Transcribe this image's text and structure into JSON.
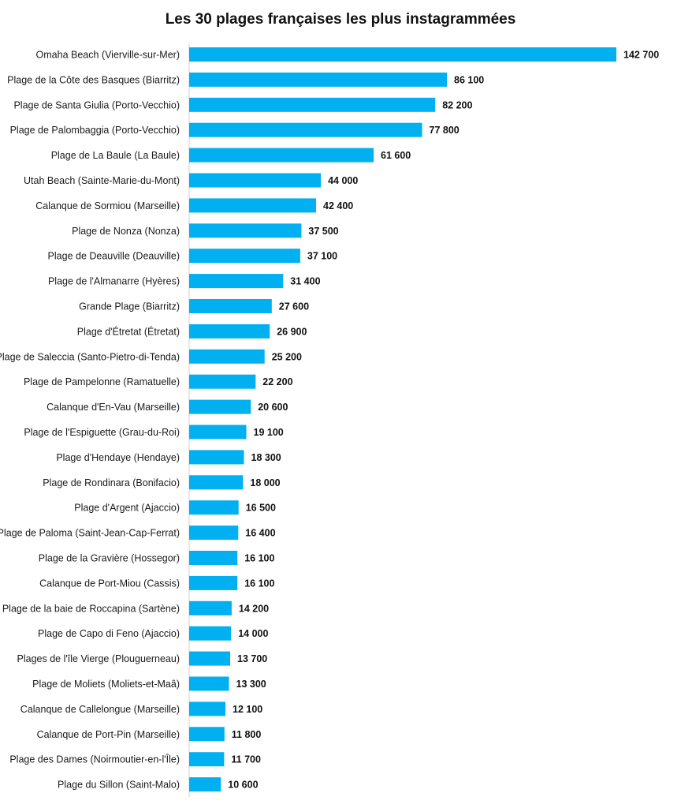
{
  "chart_data": {
    "type": "bar",
    "orientation": "horizontal",
    "title": "Les 30 plages françaises les plus instagrammées",
    "xlabel": "",
    "ylabel": "",
    "categories": [
      "Omaha Beach (Vierville-sur-Mer)",
      "Plage de la Côte des Basques (Biarritz)",
      "Plage de Santa Giulia (Porto-Vecchio)",
      "Plage de Palombaggia (Porto-Vecchio)",
      "Plage de La Baule (La Baule)",
      "Utah Beach (Sainte-Marie-du-Mont)",
      "Calanque de Sormiou (Marseille)",
      "Plage de Nonza (Nonza)",
      "Plage de Deauville (Deauville)",
      "Plage de l'Almanarre (Hyères)",
      "Grande Plage (Biarritz)",
      "Plage d'Étretat (Étretat)",
      "Plage de Saleccia (Santo-Pietro-di-Tenda)",
      "Plage de Pampelonne (Ramatuelle)",
      "Calanque d'En-Vau (Marseille)",
      "Plage de l'Espiguette (Grau-du-Roi)",
      "Plage d'Hendaye (Hendaye)",
      "Plage de Rondinara (Bonifacio)",
      "Plage d'Argent (Ajaccio)",
      "Plage de Paloma (Saint-Jean-Cap-Ferrat)",
      "Plage de la Gravière (Hossegor)",
      "Calanque de Port-Miou (Cassis)",
      "Plage de la baie de Roccapina (Sartène)",
      "Plage de Capo di Feno (Ajaccio)",
      "Plages de l'île Vierge (Plouguerneau)",
      "Plage de Moliets (Moliets-et-Maâ)",
      "Calanque de Callelongue (Marseille)",
      "Calanque de Port-Pin (Marseille)",
      "Plage des Dames (Noirmoutier-en-l'Île)",
      "Plage du Sillon (Saint-Malo)"
    ],
    "values": [
      142700,
      86100,
      82200,
      77800,
      61600,
      44000,
      42400,
      37500,
      37100,
      31400,
      27600,
      26900,
      25200,
      22200,
      20600,
      19100,
      18300,
      18000,
      16500,
      16400,
      16100,
      16100,
      14200,
      14000,
      13700,
      13300,
      12100,
      11800,
      11700,
      10600
    ],
    "value_labels": [
      "142 700",
      "86 100",
      "82 200",
      "77 800",
      "61 600",
      "44 000",
      "42 400",
      "37 500",
      "37 100",
      "31 400",
      "27 600",
      "26 900",
      "25 200",
      "22 200",
      "20 600",
      "19 100",
      "18 300",
      "18 000",
      "16 500",
      "16 400",
      "16 100",
      "16 100",
      "14 200",
      "14 000",
      "13 700",
      "13 300",
      "12 100",
      "11 800",
      "11 700",
      "10 600"
    ],
    "xlim": [
      0,
      142700
    ],
    "grid": false,
    "legend": "none",
    "bar_color": "#00b0f0"
  }
}
